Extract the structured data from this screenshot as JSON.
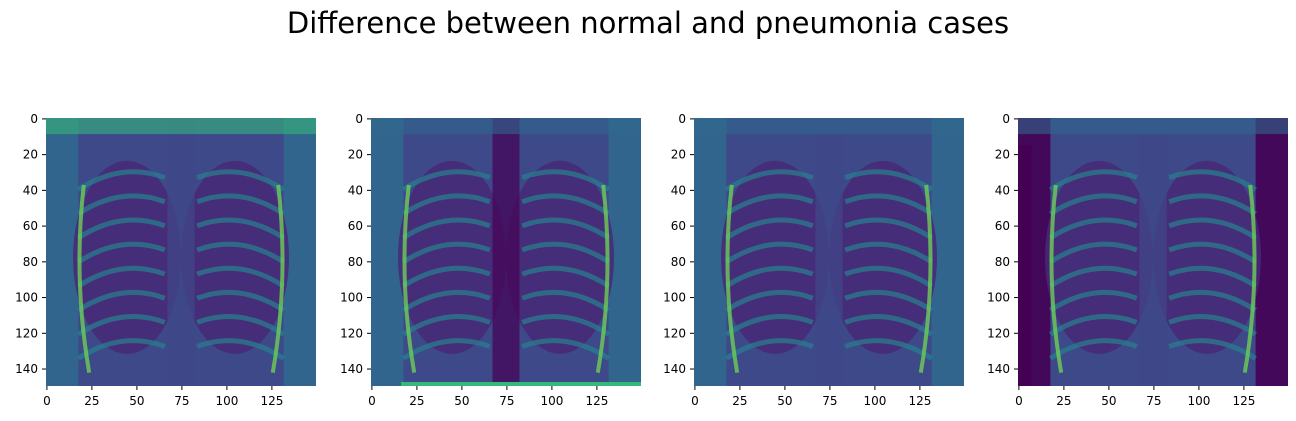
{
  "figure": {
    "title": "Difference between normal and pneumonia cases"
  },
  "colors": {
    "colormap": "viridis",
    "viridis_stops": [
      "#440154",
      "#482878",
      "#3e4989",
      "#31688e",
      "#26828e",
      "#1f9e89",
      "#35b779",
      "#6ece58",
      "#b5de2b",
      "#fde725"
    ],
    "axis": "#000000"
  },
  "chart_data": [
    {
      "type": "heatmap",
      "content": "chest x-ray image",
      "colormap": "viridis",
      "image_size": [
        150,
        150
      ],
      "xlim": [
        0,
        149
      ],
      "ylim": [
        149,
        0
      ],
      "xticks": [
        0,
        25,
        50,
        75,
        100,
        125
      ],
      "yticks": [
        0,
        20,
        40,
        60,
        80,
        100,
        120,
        140
      ],
      "xlabel": "",
      "ylabel": ""
    },
    {
      "type": "heatmap",
      "content": "chest x-ray image",
      "colormap": "viridis",
      "image_size": [
        150,
        150
      ],
      "xlim": [
        0,
        149
      ],
      "ylim": [
        149,
        0
      ],
      "xticks": [
        0,
        25,
        50,
        75,
        100,
        125
      ],
      "yticks": [
        0,
        20,
        40,
        60,
        80,
        100,
        120,
        140
      ],
      "xlabel": "",
      "ylabel": ""
    },
    {
      "type": "heatmap",
      "content": "chest x-ray image",
      "colormap": "viridis",
      "image_size": [
        150,
        150
      ],
      "xlim": [
        0,
        149
      ],
      "ylim": [
        149,
        0
      ],
      "xticks": [
        0,
        25,
        50,
        75,
        100,
        125
      ],
      "yticks": [
        0,
        20,
        40,
        60,
        80,
        100,
        120,
        140
      ],
      "xlabel": "",
      "ylabel": ""
    },
    {
      "type": "heatmap",
      "content": "chest x-ray image",
      "colormap": "viridis",
      "image_size": [
        150,
        150
      ],
      "xlim": [
        0,
        149
      ],
      "ylim": [
        149,
        0
      ],
      "xticks": [
        0,
        25,
        50,
        75,
        100,
        125
      ],
      "yticks": [
        0,
        20,
        40,
        60,
        80,
        100,
        120,
        140
      ],
      "xlabel": "",
      "ylabel": ""
    }
  ]
}
